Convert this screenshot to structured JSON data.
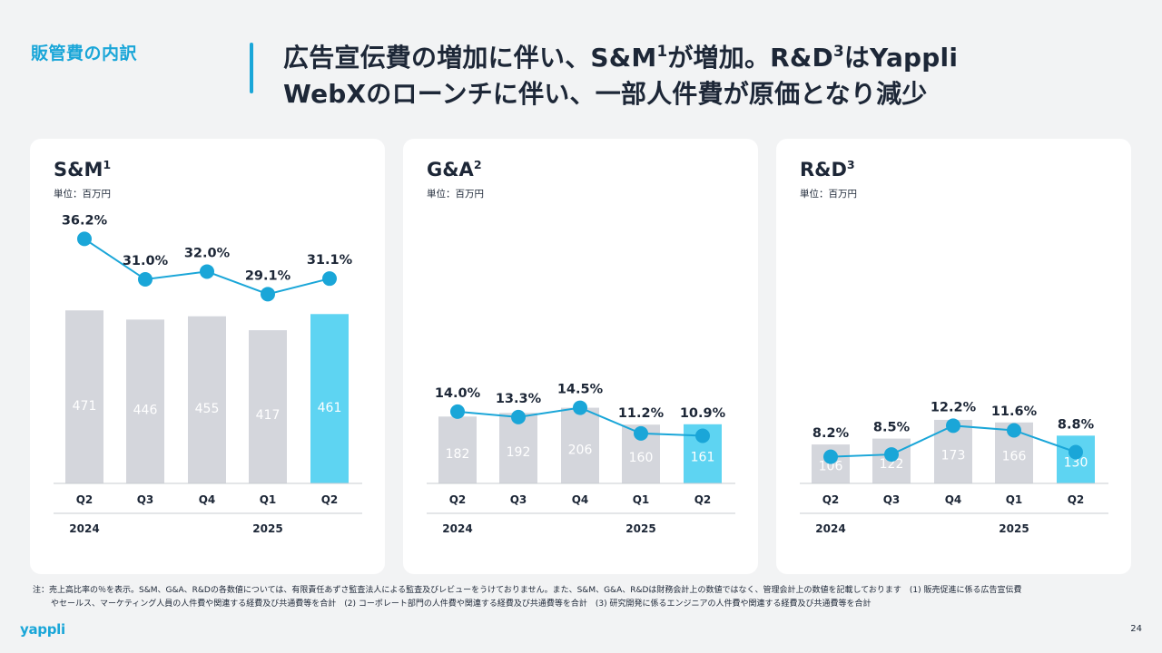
{
  "section_label": "販管費の内訳",
  "headline": {
    "line1_a": "広告宣伝費の増加に伴い、S&M",
    "line1_sup1": "1",
    "line1_b": "が増加。R&D",
    "line1_sup2": "3",
    "line1_c": "はYappli",
    "line2": "WebXのローンチに伴い、一部人件費が原価となり減少"
  },
  "chart_data": [
    {
      "type": "bar",
      "title": "S&M",
      "title_sup": "1",
      "unit": "単位：百万円",
      "categories": [
        "Q2",
        "Q3",
        "Q4",
        "Q1",
        "Q2"
      ],
      "year_labels": [
        "2024",
        "2025"
      ],
      "values": [
        471,
        446,
        455,
        417,
        461
      ],
      "ratio_labels": [
        "36.2%",
        "31.0%",
        "32.0%",
        "29.1%",
        "31.1%"
      ],
      "ratios": [
        36.2,
        31.0,
        32.0,
        29.1,
        31.1
      ],
      "highlight_index": 4
    },
    {
      "type": "bar",
      "title": "G&A",
      "title_sup": "2",
      "unit": "単位：百万円",
      "categories": [
        "Q2",
        "Q3",
        "Q4",
        "Q1",
        "Q2"
      ],
      "year_labels": [
        "2024",
        "2025"
      ],
      "values": [
        182,
        192,
        206,
        160,
        161
      ],
      "ratio_labels": [
        "14.0%",
        "13.3%",
        "14.5%",
        "11.2%",
        "10.9%"
      ],
      "ratios": [
        14.0,
        13.3,
        14.5,
        11.2,
        10.9
      ],
      "highlight_index": 4
    },
    {
      "type": "bar",
      "title": "R&D",
      "title_sup": "3",
      "unit": "単位：百万円",
      "categories": [
        "Q2",
        "Q3",
        "Q4",
        "Q1",
        "Q2"
      ],
      "year_labels": [
        "2024",
        "2025"
      ],
      "values": [
        106,
        122,
        173,
        166,
        130
      ],
      "ratio_labels": [
        "8.2%",
        "8.5%",
        "12.2%",
        "11.6%",
        "8.8%"
      ],
      "ratios": [
        8.2,
        8.5,
        12.2,
        11.6,
        8.8
      ],
      "highlight_index": 4
    }
  ],
  "colors": {
    "accent": "#1aa6d8",
    "bar": "#d4d6dc",
    "bar_highlight": "#5ed4f2",
    "line": "#1aa6d8"
  },
  "footnote": {
    "line1": "注：売上高比率の％を表示。S&M、G&A、R&Dの各数値については、有限責任あずさ監査法人による監査及びレビューをうけておりません。また、S&M、G&A、R&Dは財務会計上の数値ではなく、管理会計上の数値を記載しております　(1) 販売促進に係る広告宣伝費",
    "line2": "やセールス、マーケティング人員の人件費や関連する経費及び共通費等を合計　(2) コーポレート部門の人件費や関連する経費及び共通費等を合計　(3) 研究開発に係るエンジニアの人件費や関連する経費及び共通費等を合計"
  },
  "logo_text": "yappli",
  "page_number": "24"
}
